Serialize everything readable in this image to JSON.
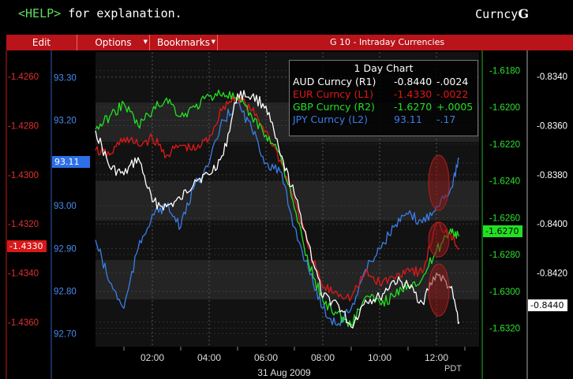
{
  "header": {
    "help_tag": "<HELP>",
    "help_text": " for explanation.",
    "function_prefix": "Curncy",
    "function_key": "G"
  },
  "menu": {
    "edit": "Edit",
    "options": "Options",
    "bookmarks": "Bookmarks",
    "window_title": "G 10 - Intraday Currencies"
  },
  "legend": {
    "title": "1 Day Chart",
    "rows": [
      {
        "name": "AUD Curncy (R1)",
        "value": "-0.8440",
        "change": "-.0024",
        "color": "#ffffff"
      },
      {
        "name": "EUR Curncy (L1)",
        "value": "-1.4330",
        "change": "-.0022",
        "color": "#e01818"
      },
      {
        "name": "GBP Curncy (R2)",
        "value": "-1.6270",
        "change": "+.0005",
        "color": "#22e022"
      },
      {
        "name": "JPY Curncy (L2)",
        "value": "93.11",
        "change": "-.17",
        "color": "#3a7ee8"
      }
    ]
  },
  "axes": {
    "eur_ticks": [
      "-1.4260",
      "-1.4280",
      "-1.4300",
      "-1.4320",
      "-1.4340",
      "-1.4360"
    ],
    "jpy_ticks": [
      "93.30",
      "93.20",
      "93.10",
      "93.00",
      "92.90",
      "92.80",
      "92.70"
    ],
    "gbp_ticks": [
      "-1.6180",
      "-1.6200",
      "-1.6220",
      "-1.6240",
      "-1.6260",
      "-1.6280",
      "-1.6300",
      "-1.6320"
    ],
    "aud_ticks": [
      "-0.8340",
      "-0.8360",
      "-0.8380",
      "-0.8400",
      "-0.8420"
    ],
    "time_ticks": [
      "02:00",
      "04:00",
      "06:00",
      "08:00",
      "10:00",
      "12:00"
    ],
    "date_label": "31 Aug 2009",
    "tz_label": "PDT"
  },
  "tags": {
    "jpy": "93.11",
    "eur": "-1.4330",
    "gbp": "-1.6270",
    "aud": "-0.8440"
  },
  "colors": {
    "aud": "#ffffff",
    "eur": "#e01818",
    "gbp": "#22e022",
    "jpy": "#3a7ee8",
    "menu_bg": "#b8141a"
  },
  "chart_data": {
    "type": "line",
    "title": "1 Day Chart",
    "x_unit": "hours (PDT), 31 Aug 2009",
    "xlim": [
      0,
      13.5
    ],
    "series": [
      {
        "name": "AUD Curncy (R1)",
        "axis": "R1",
        "ylim": [
          -0.845,
          -0.833
        ],
        "x": [
          0,
          0.5,
          1,
          1.5,
          2,
          2.5,
          3,
          3.5,
          4,
          4.5,
          5,
          5.5,
          6,
          6.5,
          7,
          7.5,
          8,
          8.5,
          9,
          9.5,
          10,
          10.5,
          11,
          11.5,
          12,
          12.5,
          12.8
        ],
        "y": [
          -0.8362,
          -0.8377,
          -0.838,
          -0.8373,
          -0.8391,
          -0.8393,
          -0.839,
          -0.8382,
          -0.838,
          -0.8372,
          -0.8347,
          -0.8348,
          -0.8352,
          -0.8372,
          -0.8388,
          -0.8408,
          -0.843,
          -0.8432,
          -0.8442,
          -0.8431,
          -0.843,
          -0.8423,
          -0.8425,
          -0.8432,
          -0.842,
          -0.8426,
          -0.844
        ]
      },
      {
        "name": "EUR Curncy (L1)",
        "axis": "L1",
        "ylim": [
          -1.437,
          -1.425
        ],
        "x": [
          0,
          0.5,
          1,
          1.5,
          2,
          2.5,
          3,
          3.5,
          4,
          4.5,
          5,
          5.5,
          6,
          6.5,
          7,
          7.5,
          8,
          8.5,
          9,
          9.5,
          10,
          10.5,
          11,
          11.5,
          12,
          12.5,
          12.8
        ],
        "y": [
          -1.429,
          -1.4292,
          -1.4285,
          -1.4288,
          -1.4285,
          -1.4292,
          -1.4288,
          -1.429,
          -1.4285,
          -1.4272,
          -1.4268,
          -1.4274,
          -1.4282,
          -1.4294,
          -1.431,
          -1.433,
          -1.4346,
          -1.4348,
          -1.435,
          -1.434,
          -1.4344,
          -1.4342,
          -1.4338,
          -1.434,
          -1.432,
          -1.4324,
          -1.433
        ]
      },
      {
        "name": "GBP Curncy (R2)",
        "axis": "R2",
        "ylim": [
          -1.633,
          -1.617
        ],
        "x": [
          0,
          0.5,
          1,
          1.5,
          2,
          2.5,
          3,
          3.5,
          4,
          4.5,
          5,
          5.5,
          6,
          6.5,
          7,
          7.5,
          8,
          8.5,
          9,
          9.5,
          10,
          10.5,
          11,
          11.5,
          12,
          12.5,
          12.8
        ],
        "y": [
          -1.6212,
          -1.6205,
          -1.6198,
          -1.621,
          -1.6202,
          -1.6195,
          -1.6205,
          -1.62,
          -1.6194,
          -1.6192,
          -1.6196,
          -1.6205,
          -1.6215,
          -1.6225,
          -1.6255,
          -1.6285,
          -1.6305,
          -1.6312,
          -1.6318,
          -1.6303,
          -1.6306,
          -1.6303,
          -1.6296,
          -1.6293,
          -1.6278,
          -1.6266,
          -1.627
        ]
      },
      {
        "name": "JPY Curncy (L2)",
        "axis": "L2",
        "ylim": [
          92.67,
          93.36
        ],
        "x": [
          0,
          0.5,
          1,
          1.5,
          2,
          2.5,
          3,
          3.5,
          4,
          4.5,
          5,
          5.5,
          6,
          6.5,
          7,
          7.5,
          8,
          8.5,
          9,
          9.5,
          10,
          10.5,
          11,
          11.5,
          12,
          12.5,
          12.8
        ],
        "y": [
          92.92,
          92.82,
          92.76,
          92.9,
          92.98,
          93.0,
          92.95,
          93.05,
          93.1,
          93.2,
          93.24,
          93.18,
          93.1,
          93.08,
          92.95,
          92.85,
          92.76,
          92.72,
          92.76,
          92.85,
          92.9,
          92.95,
          92.98,
          92.96,
          93.0,
          93.04,
          93.11
        ]
      }
    ]
  }
}
